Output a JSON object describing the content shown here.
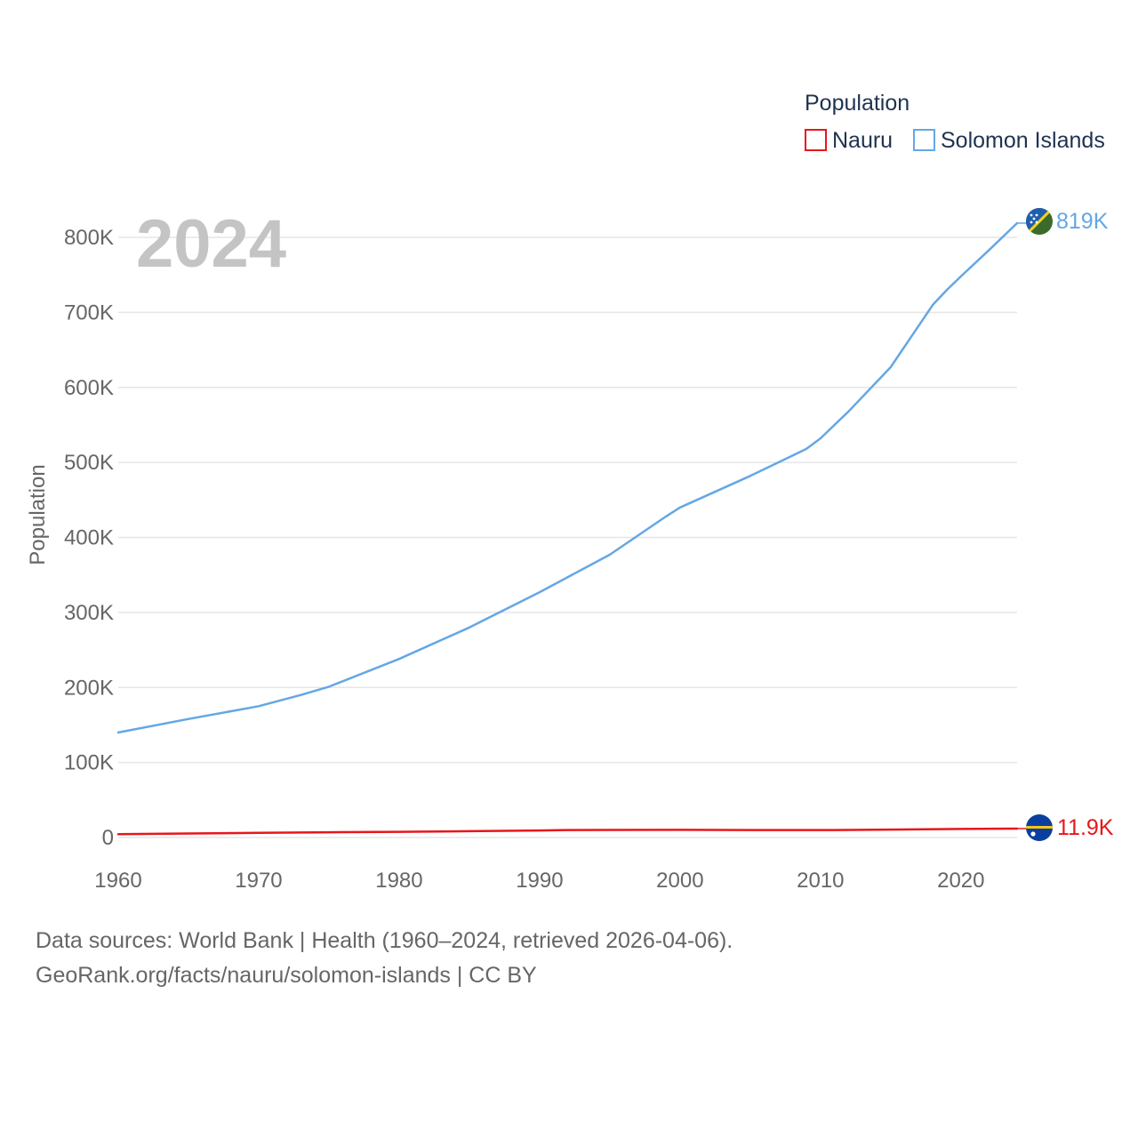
{
  "chart_data": {
    "type": "line",
    "year_display": "2024",
    "ylabel": "Population",
    "xlim": [
      1960,
      2024
    ],
    "ylim": [
      0,
      800000
    ],
    "x_ticks": [
      1960,
      1970,
      1980,
      1990,
      2000,
      2010,
      2020
    ],
    "x_tick_labels": [
      "1960",
      "1970",
      "1980",
      "1990",
      "2000",
      "2010",
      "2020"
    ],
    "y_ticks": [
      0,
      100000,
      200000,
      300000,
      400000,
      500000,
      600000,
      700000,
      800000
    ],
    "y_tick_labels": [
      "0",
      "100K",
      "200K",
      "300K",
      "400K",
      "500K",
      "600K",
      "700K",
      "800K"
    ],
    "grid": true,
    "legend": {
      "title": "Population",
      "placement": "top-right",
      "entries": [
        "Nauru",
        "Solomon Islands"
      ]
    },
    "series": [
      {
        "name": "Nauru",
        "color": "#e8161b",
        "end_label": "11.9K",
        "flag": "nauru-flag",
        "points": [
          [
            1960,
            4400
          ],
          [
            1965,
            5300
          ],
          [
            1970,
            6300
          ],
          [
            1975,
            7000
          ],
          [
            1980,
            7600
          ],
          [
            1985,
            8400
          ],
          [
            1990,
            9400
          ],
          [
            1992,
            9900
          ],
          [
            1995,
            10100
          ],
          [
            2000,
            10200
          ],
          [
            2005,
            10000
          ],
          [
            2008,
            9900
          ],
          [
            2011,
            10000
          ],
          [
            2015,
            10600
          ],
          [
            2020,
            11400
          ],
          [
            2024,
            11900
          ]
        ]
      },
      {
        "name": "Solomon Islands",
        "color": "#64a7e5",
        "end_label": "819K",
        "flag": "solomon-islands-flag",
        "points": [
          [
            1960,
            140000
          ],
          [
            1965,
            158000
          ],
          [
            1970,
            175000
          ],
          [
            1973,
            190000
          ],
          [
            1975,
            201000
          ],
          [
            1980,
            238000
          ],
          [
            1985,
            280000
          ],
          [
            1990,
            327000
          ],
          [
            1995,
            377000
          ],
          [
            1999,
            428000
          ],
          [
            2000,
            440000
          ],
          [
            2005,
            482000
          ],
          [
            2009,
            518000
          ],
          [
            2010,
            532000
          ],
          [
            2012,
            568000
          ],
          [
            2015,
            627000
          ],
          [
            2018,
            710000
          ],
          [
            2019,
            730000
          ],
          [
            2020,
            748000
          ],
          [
            2022,
            783000
          ],
          [
            2024,
            819000
          ]
        ]
      }
    ]
  },
  "footer": {
    "sources": "Data sources: World Bank | Health (1960–2024, retrieved 2026-04-06).",
    "attribution": "GeoRank.org/facts/nauru/solomon-islands | CC BY"
  }
}
